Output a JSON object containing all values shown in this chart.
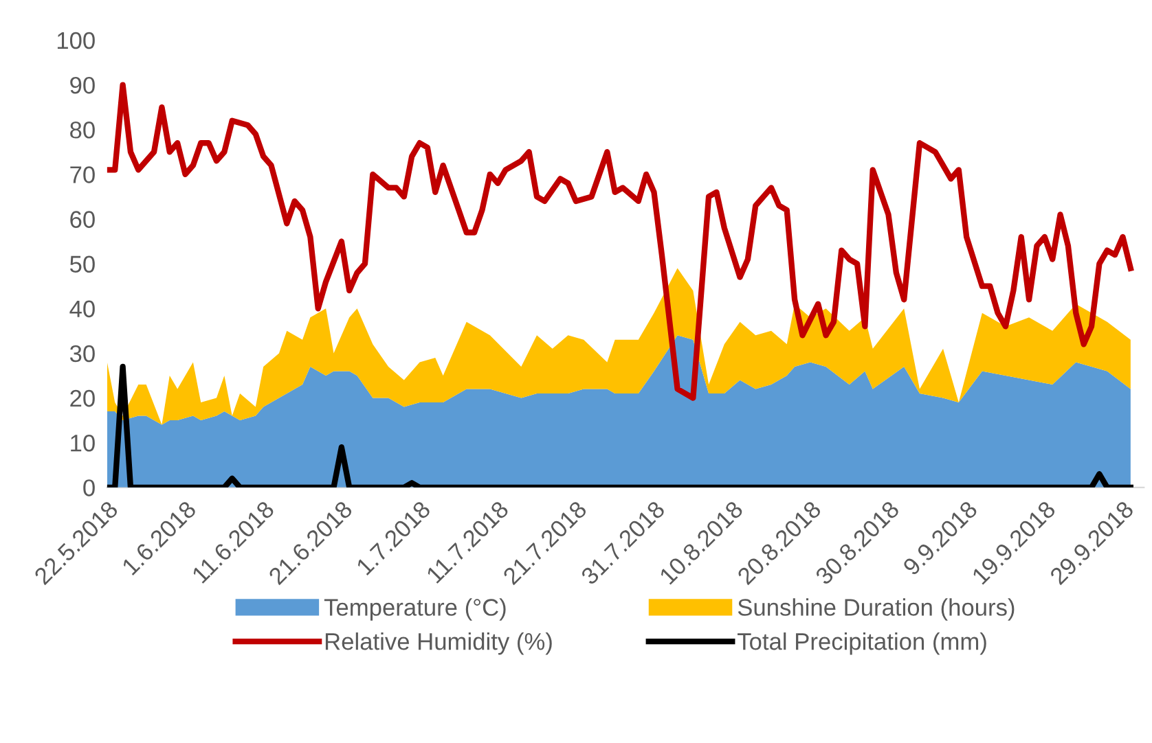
{
  "chart_data": {
    "type": "area",
    "stacked": true,
    "legend": "bottom",
    "xlim": [
      "2018-05-22",
      "2018-10-01T17:00"
    ],
    "xticks": [
      {
        "value": "2018-05-22",
        "label": "22.5.2018"
      },
      {
        "value": "2018-06-01",
        "label": "1.6.2018"
      },
      {
        "value": "2018-06-11",
        "label": "11.6.2018"
      },
      {
        "value": "2018-06-21",
        "label": "21.6.2018"
      },
      {
        "value": "2018-07-01",
        "label": "1.7.2018"
      },
      {
        "value": "2018-07-11",
        "label": "11.7.2018"
      },
      {
        "value": "2018-07-21",
        "label": "21.7.2018"
      },
      {
        "value": "2018-07-31",
        "label": "31.7.2018"
      },
      {
        "value": "2018-08-10",
        "label": "10.8.2018"
      },
      {
        "value": "2018-08-20",
        "label": "20.8.2018"
      },
      {
        "value": "2018-08-30",
        "label": "30.8.2018"
      },
      {
        "value": "2018-09-09",
        "label": "9.9.2018"
      },
      {
        "value": "2018-09-19",
        "label": "19.9.2018"
      },
      {
        "value": "2018-09-29",
        "label": "29.9.2018"
      }
    ],
    "ylim": [
      0,
      100
    ],
    "yticks": [
      0,
      10,
      20,
      30,
      40,
      50,
      60,
      70,
      80,
      90,
      100
    ],
    "series": [
      {
        "name": "Temperature (°C)",
        "color": "#5b9bd5",
        "x": [
          "2018-05-22",
          "2018-05-23",
          "2018-05-24",
          "2018-05-26",
          "2018-05-27",
          "2018-05-29",
          "2018-05-30",
          "2018-05-31",
          "2018-06-02",
          "2018-06-03",
          "2018-06-05",
          "2018-06-06",
          "2018-06-07",
          "2018-06-08",
          "2018-06-10",
          "2018-06-11",
          "2018-06-13",
          "2018-06-14",
          "2018-06-16",
          "2018-06-17",
          "2018-06-19",
          "2018-06-20",
          "2018-06-22",
          "2018-06-23",
          "2018-06-25",
          "2018-06-27",
          "2018-06-29",
          "2018-07-01",
          "2018-07-03",
          "2018-07-04",
          "2018-07-07",
          "2018-07-10",
          "2018-07-14",
          "2018-07-16",
          "2018-07-18",
          "2018-07-20",
          "2018-07-22",
          "2018-07-25",
          "2018-07-26",
          "2018-07-29",
          "2018-07-31",
          "2018-08-03",
          "2018-08-05",
          "2018-08-07",
          "2018-08-09",
          "2018-08-11",
          "2018-08-13",
          "2018-08-15",
          "2018-08-17",
          "2018-08-18",
          "2018-08-20",
          "2018-08-22",
          "2018-08-25",
          "2018-08-27",
          "2018-08-28",
          "2018-09-01",
          "2018-09-03",
          "2018-09-06",
          "2018-09-08",
          "2018-09-11",
          "2018-09-14",
          "2018-09-17",
          "2018-09-20",
          "2018-09-23",
          "2018-09-27",
          "2018-09-30"
        ],
        "values": [
          17,
          17,
          15,
          16,
          16,
          14,
          15,
          15,
          16,
          15,
          16,
          17,
          16,
          15,
          16,
          18,
          20,
          21,
          23,
          27,
          25,
          26,
          26,
          25,
          20,
          20,
          18,
          19,
          19,
          19,
          22,
          22,
          20,
          21,
          21,
          21,
          22,
          22,
          21,
          21,
          26,
          34,
          33,
          21,
          21,
          24,
          22,
          23,
          25,
          27,
          28,
          27,
          23,
          26,
          22,
          27,
          21,
          20,
          19,
          26,
          25,
          24,
          23,
          28,
          26,
          22
        ]
      },
      {
        "name": "Sunshine Duration (hours)",
        "color": "#ffc000",
        "x": [
          "2018-05-22",
          "2018-05-23",
          "2018-05-24",
          "2018-05-26",
          "2018-05-27",
          "2018-05-29",
          "2018-05-30",
          "2018-05-31",
          "2018-06-02",
          "2018-06-03",
          "2018-06-05",
          "2018-06-06",
          "2018-06-07",
          "2018-06-08",
          "2018-06-10",
          "2018-06-11",
          "2018-06-13",
          "2018-06-14",
          "2018-06-16",
          "2018-06-17",
          "2018-06-19",
          "2018-06-20",
          "2018-06-22",
          "2018-06-23",
          "2018-06-25",
          "2018-06-27",
          "2018-06-29",
          "2018-07-01",
          "2018-07-03",
          "2018-07-04",
          "2018-07-07",
          "2018-07-10",
          "2018-07-14",
          "2018-07-16",
          "2018-07-18",
          "2018-07-20",
          "2018-07-22",
          "2018-07-25",
          "2018-07-26",
          "2018-07-29",
          "2018-07-31",
          "2018-08-03",
          "2018-08-05",
          "2018-08-07",
          "2018-08-09",
          "2018-08-11",
          "2018-08-13",
          "2018-08-15",
          "2018-08-17",
          "2018-08-18",
          "2018-08-20",
          "2018-08-22",
          "2018-08-25",
          "2018-08-27",
          "2018-08-28",
          "2018-09-01",
          "2018-09-03",
          "2018-09-06",
          "2018-09-08",
          "2018-09-11",
          "2018-09-14",
          "2018-09-17",
          "2018-09-20",
          "2018-09-23",
          "2018-09-27",
          "2018-09-30"
        ],
        "values": [
          11,
          2,
          1,
          7,
          7,
          0,
          10,
          7,
          12,
          4,
          4,
          8,
          0,
          6,
          2,
          9,
          10,
          14,
          10,
          11,
          15,
          4,
          12,
          15,
          12,
          7,
          6,
          9,
          10,
          6,
          15,
          12,
          7,
          13,
          10,
          13,
          11,
          6,
          12,
          12,
          13,
          15,
          11,
          2,
          11,
          13,
          12,
          12,
          7,
          14,
          10,
          13,
          12,
          12,
          9,
          13,
          1,
          11,
          0,
          13,
          11,
          14,
          12,
          13,
          11,
          11
        ]
      },
      {
        "name": "Relative Humidity (%)",
        "type": "line",
        "color": "#c00000",
        "x": [
          "2018-05-22",
          "2018-05-23",
          "2018-05-24",
          "2018-05-25",
          "2018-05-26",
          "2018-05-27",
          "2018-05-28",
          "2018-05-29",
          "2018-05-30",
          "2018-05-31",
          "2018-06-01",
          "2018-06-02",
          "2018-06-03",
          "2018-06-04",
          "2018-06-05",
          "2018-06-06",
          "2018-06-07",
          "2018-06-09",
          "2018-06-10",
          "2018-06-11",
          "2018-06-12",
          "2018-06-14",
          "2018-06-15",
          "2018-06-16",
          "2018-06-17",
          "2018-06-18",
          "2018-06-19",
          "2018-06-21",
          "2018-06-22",
          "2018-06-23",
          "2018-06-24",
          "2018-06-25",
          "2018-06-27",
          "2018-06-28",
          "2018-06-29",
          "2018-06-30",
          "2018-07-01",
          "2018-07-02",
          "2018-07-03",
          "2018-07-04",
          "2018-07-06",
          "2018-07-07",
          "2018-07-08",
          "2018-07-09",
          "2018-07-10",
          "2018-07-11",
          "2018-07-12",
          "2018-07-14",
          "2018-07-15",
          "2018-07-16",
          "2018-07-17",
          "2018-07-19",
          "2018-07-20",
          "2018-07-21",
          "2018-07-23",
          "2018-07-25",
          "2018-07-26",
          "2018-07-27",
          "2018-07-29",
          "2018-07-30",
          "2018-07-31",
          "2018-08-01",
          "2018-08-03",
          "2018-08-05",
          "2018-08-07",
          "2018-08-08",
          "2018-08-09",
          "2018-08-11",
          "2018-08-12",
          "2018-08-13",
          "2018-08-15",
          "2018-08-16",
          "2018-08-17",
          "2018-08-18",
          "2018-08-19",
          "2018-08-21",
          "2018-08-22",
          "2018-08-23",
          "2018-08-24",
          "2018-08-25",
          "2018-08-26",
          "2018-08-27",
          "2018-08-28",
          "2018-08-30",
          "2018-08-31",
          "2018-09-01",
          "2018-09-03",
          "2018-09-04",
          "2018-09-05",
          "2018-09-07",
          "2018-09-08",
          "2018-09-09",
          "2018-09-11",
          "2018-09-12",
          "2018-09-13",
          "2018-09-14",
          "2018-09-15",
          "2018-09-16",
          "2018-09-17",
          "2018-09-18",
          "2018-09-19",
          "2018-09-20",
          "2018-09-21",
          "2018-09-22",
          "2018-09-23",
          "2018-09-24",
          "2018-09-25",
          "2018-09-26",
          "2018-09-27",
          "2018-09-28",
          "2018-09-29",
          "2018-09-30"
        ],
        "values": [
          71,
          71,
          90,
          75,
          71,
          73,
          75,
          85,
          75,
          77,
          70,
          72,
          77,
          77,
          73,
          75,
          82,
          81,
          79,
          74,
          72,
          59,
          64,
          62,
          56,
          40,
          46,
          55,
          44,
          48,
          50,
          70,
          67,
          67,
          65,
          74,
          77,
          76,
          66,
          72,
          62,
          57,
          57,
          62,
          70,
          68,
          71,
          73,
          75,
          65,
          64,
          69,
          68,
          64,
          65,
          75,
          66,
          67,
          64,
          70,
          66,
          52,
          22,
          20,
          65,
          66,
          58,
          47,
          51,
          63,
          67,
          63,
          62,
          42,
          34,
          41,
          34,
          37,
          53,
          51,
          50,
          36,
          71,
          61,
          48,
          42,
          77,
          76,
          75,
          69,
          71,
          56,
          45,
          45,
          39,
          36,
          44,
          56,
          42,
          54,
          56,
          51,
          61,
          54,
          39,
          32,
          36,
          50,
          53,
          52,
          56,
          49
        ]
      },
      {
        "name": "Total Precipitation (mm)",
        "type": "line",
        "color": "#000000",
        "x": [
          "2018-05-22",
          "2018-05-23",
          "2018-05-24",
          "2018-05-25",
          "2018-06-06",
          "2018-06-07",
          "2018-06-08",
          "2018-06-20",
          "2018-06-21",
          "2018-06-22",
          "2018-06-29",
          "2018-06-30",
          "2018-07-01",
          "2018-09-25",
          "2018-09-26",
          "2018-09-27",
          "2018-09-30"
        ],
        "values": [
          0,
          0,
          27,
          0,
          0,
          2,
          0,
          0,
          9,
          0,
          0,
          1,
          0,
          0,
          3,
          0,
          0
        ]
      }
    ]
  }
}
